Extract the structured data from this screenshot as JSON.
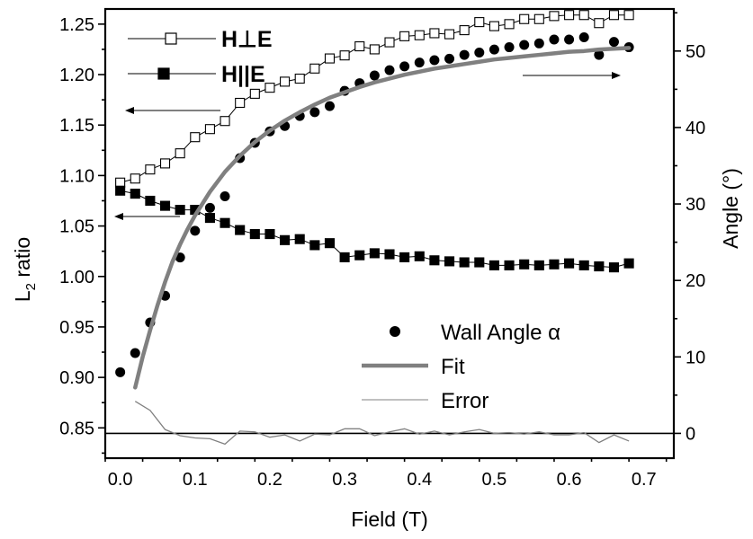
{
  "chart_data": {
    "type": "scatter",
    "xlabel": "Field (T)",
    "ylabel": "L",
    "ylabel_sub": "2",
    "ylabel_rest": " ratio",
    "y2label": "Angle (°)",
    "xlim": [
      -0.02,
      0.74
    ],
    "ylim": [
      0.82,
      1.265
    ],
    "y2lim": [
      -3.24,
      55.5
    ],
    "x_ticks": [
      0.0,
      0.1,
      0.2,
      0.3,
      0.4,
      0.5,
      0.6,
      0.7
    ],
    "x_tick_labels": [
      "0.0",
      "0.1",
      "0.2",
      "0.3",
      "0.4",
      "0.5",
      "0.6",
      "0.7"
    ],
    "y_ticks": [
      0.85,
      0.9,
      0.95,
      1.0,
      1.05,
      1.1,
      1.15,
      1.2,
      1.25
    ],
    "y_tick_labels": [
      "0.85",
      "0.90",
      "0.95",
      "1.00",
      "1.05",
      "1.10",
      "1.15",
      "1.20",
      "1.25"
    ],
    "y2_ticks": [
      0,
      10,
      20,
      30,
      40,
      50
    ],
    "y2_tick_labels": [
      "0",
      "10",
      "20",
      "30",
      "40",
      "50"
    ],
    "legend": {
      "perp_label": "H⊥E",
      "par_label": "H||E",
      "wall_label": "Wall Angle α",
      "fit_label": "Fit",
      "error_label": "Error"
    },
    "reference_lines": [
      {
        "axis": "y2",
        "value": 0
      }
    ],
    "series": [
      {
        "name": "H⊥E",
        "axis": "left",
        "marker": "open-square",
        "color": "#000000",
        "x": [
          0.0,
          0.02,
          0.04,
          0.06,
          0.08,
          0.1,
          0.12,
          0.14,
          0.16,
          0.18,
          0.2,
          0.22,
          0.24,
          0.26,
          0.28,
          0.3,
          0.32,
          0.34,
          0.36,
          0.38,
          0.4,
          0.42,
          0.44,
          0.46,
          0.48,
          0.5,
          0.52,
          0.54,
          0.56,
          0.58,
          0.6,
          0.62,
          0.64,
          0.66,
          0.68
        ],
        "y": [
          1.093,
          1.097,
          1.106,
          1.112,
          1.122,
          1.138,
          1.146,
          1.154,
          1.172,
          1.181,
          1.187,
          1.193,
          1.196,
          1.206,
          1.216,
          1.219,
          1.228,
          1.225,
          1.232,
          1.238,
          1.239,
          1.241,
          1.24,
          1.244,
          1.252,
          1.248,
          1.25,
          1.255,
          1.255,
          1.258,
          1.259,
          1.259,
          1.251,
          1.259,
          1.259
        ]
      },
      {
        "name": "H||E",
        "axis": "left",
        "marker": "filled-square",
        "color": "#000000",
        "x": [
          0.0,
          0.02,
          0.04,
          0.06,
          0.08,
          0.1,
          0.12,
          0.14,
          0.16,
          0.18,
          0.2,
          0.22,
          0.24,
          0.26,
          0.28,
          0.3,
          0.32,
          0.34,
          0.36,
          0.38,
          0.4,
          0.42,
          0.44,
          0.46,
          0.48,
          0.5,
          0.52,
          0.54,
          0.56,
          0.58,
          0.6,
          0.62,
          0.64,
          0.66,
          0.68
        ],
        "y": [
          1.085,
          1.082,
          1.075,
          1.07,
          1.066,
          1.066,
          1.058,
          1.053,
          1.046,
          1.042,
          1.042,
          1.036,
          1.037,
          1.031,
          1.033,
          1.019,
          1.021,
          1.023,
          1.022,
          1.019,
          1.02,
          1.016,
          1.015,
          1.014,
          1.014,
          1.011,
          1.011,
          1.012,
          1.011,
          1.012,
          1.013,
          1.011,
          1.01,
          1.009,
          1.013
        ]
      },
      {
        "name": "Wall Angle α",
        "axis": "right",
        "marker": "filled-circle",
        "color": "#000000",
        "x": [
          0.0,
          0.02,
          0.04,
          0.06,
          0.08,
          0.1,
          0.12,
          0.14,
          0.16,
          0.18,
          0.2,
          0.22,
          0.24,
          0.26,
          0.28,
          0.3,
          0.32,
          0.34,
          0.36,
          0.38,
          0.4,
          0.42,
          0.44,
          0.46,
          0.48,
          0.5,
          0.52,
          0.54,
          0.56,
          0.58,
          0.6,
          0.62,
          0.64,
          0.66,
          0.68
        ],
        "y": [
          8.0,
          10.5,
          14.5,
          18.0,
          23.0,
          26.5,
          29.5,
          31.0,
          36.0,
          38.0,
          39.5,
          40.2,
          41.5,
          42.0,
          42.8,
          44.8,
          45.8,
          46.8,
          47.5,
          48.0,
          48.5,
          48.8,
          49.0,
          49.5,
          49.8,
          50.2,
          50.5,
          50.8,
          51.0,
          51.5,
          51.5,
          51.8,
          49.5,
          51.2,
          50.5
        ]
      },
      {
        "name": "Fit",
        "axis": "right",
        "marker": "line",
        "color": "#808080",
        "x": [
          0.02,
          0.03,
          0.04,
          0.05,
          0.06,
          0.07,
          0.08,
          0.09,
          0.1,
          0.12,
          0.14,
          0.16,
          0.18,
          0.2,
          0.22,
          0.24,
          0.26,
          0.28,
          0.3,
          0.32,
          0.34,
          0.36,
          0.38,
          0.4,
          0.42,
          0.44,
          0.46,
          0.48,
          0.5,
          0.52,
          0.54,
          0.56,
          0.58,
          0.6,
          0.62,
          0.64,
          0.66,
          0.68
        ],
        "y": [
          6.0,
          10.0,
          13.5,
          16.8,
          19.8,
          22.5,
          24.7,
          26.7,
          28.5,
          31.6,
          34.2,
          36.3,
          38.1,
          39.6,
          40.9,
          42.0,
          43.0,
          43.9,
          44.6,
          45.3,
          45.9,
          46.4,
          46.9,
          47.3,
          47.7,
          48.0,
          48.3,
          48.6,
          48.9,
          49.1,
          49.3,
          49.5,
          49.7,
          49.9,
          50.0,
          50.2,
          50.3,
          50.4
        ]
      },
      {
        "name": "Error",
        "axis": "right",
        "marker": "thin-line",
        "color": "#808080",
        "x": [
          0.02,
          0.04,
          0.06,
          0.08,
          0.1,
          0.12,
          0.14,
          0.16,
          0.18,
          0.2,
          0.22,
          0.24,
          0.26,
          0.28,
          0.3,
          0.32,
          0.34,
          0.36,
          0.38,
          0.4,
          0.42,
          0.44,
          0.46,
          0.48,
          0.5,
          0.52,
          0.54,
          0.56,
          0.58,
          0.6,
          0.62,
          0.64,
          0.66,
          0.68
        ],
        "y": [
          4.2,
          3.0,
          0.5,
          -0.3,
          -0.6,
          -0.7,
          -1.4,
          0.3,
          0.2,
          -0.5,
          -0.2,
          -1.0,
          -0.1,
          -0.2,
          0.6,
          0.6,
          -0.3,
          0.2,
          0.6,
          -0.1,
          0.3,
          -0.2,
          0.2,
          0.5,
          0.0,
          0.1,
          -0.1,
          0.2,
          -0.2,
          -0.2,
          0.1,
          -1.2,
          -0.2,
          -1.0
        ]
      }
    ]
  }
}
